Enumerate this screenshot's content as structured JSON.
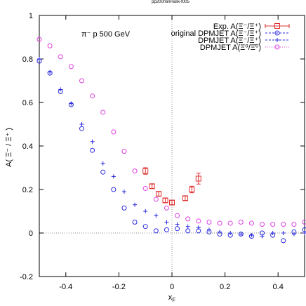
{
  "chart_data": {
    "type": "scatter",
    "title": "pp200minHask-t005",
    "xlabel": "x_F",
    "ylabel": "A( Ξ⁻ / Ξ⁺ )",
    "xlim": [
      -0.5,
      0.5
    ],
    "ylim": [
      -0.2,
      1.0
    ],
    "x_ticks": [
      -0.4,
      -0.2,
      0,
      0.2,
      0.4
    ],
    "y_ticks": [
      -0.2,
      0,
      0.2,
      0.4,
      0.6,
      0.8,
      1
    ],
    "x_tick_labels": [
      "-0.4",
      "-0.2",
      "0",
      "0.2",
      "0.4"
    ],
    "y_tick_labels": [
      "-0.2",
      "0",
      "0.2",
      "0.4",
      "0.6",
      "0.8",
      "1"
    ],
    "annotation": "π⁻ p   500 GeV",
    "grid": false,
    "zero_lines": true,
    "legend_position": "top-right",
    "series": [
      {
        "name": "Exp.  A(Ξ⁻/Ξ⁺)",
        "marker": "square",
        "color": "#e03030",
        "points": [
          {
            "x": -0.1,
            "y": 0.285,
            "err": 0.015
          },
          {
            "x": -0.075,
            "y": 0.215,
            "err": 0.01
          },
          {
            "x": -0.05,
            "y": 0.18,
            "err": 0.01
          },
          {
            "x": -0.025,
            "y": 0.15,
            "err": 0.01
          },
          {
            "x": 0.0,
            "y": 0.14,
            "err": 0.01
          },
          {
            "x": 0.05,
            "y": 0.16,
            "err": 0.01
          },
          {
            "x": 0.075,
            "y": 0.2,
            "err": 0.015
          },
          {
            "x": 0.1,
            "y": 0.25,
            "err": 0.025
          }
        ]
      },
      {
        "name": "original DPMJET A(Ξ⁻/Ξ⁺)",
        "marker": "circle",
        "color": "#2a2ae0",
        "points": [
          {
            "x": -0.5,
            "y": 0.79
          },
          {
            "x": -0.46,
            "y": 0.735
          },
          {
            "x": -0.42,
            "y": 0.65
          },
          {
            "x": -0.38,
            "y": 0.59
          },
          {
            "x": -0.34,
            "y": 0.48
          },
          {
            "x": -0.3,
            "y": 0.38
          },
          {
            "x": -0.26,
            "y": 0.28
          },
          {
            "x": -0.22,
            "y": 0.2
          },
          {
            "x": -0.18,
            "y": 0.115
          },
          {
            "x": -0.14,
            "y": 0.05
          },
          {
            "x": -0.1,
            "y": 0.03
          },
          {
            "x": -0.06,
            "y": 0.01
          },
          {
            "x": -0.02,
            "y": 0.015
          },
          {
            "x": 0.02,
            "y": 0.02
          },
          {
            "x": 0.06,
            "y": 0.01
          },
          {
            "x": 0.1,
            "y": 0.01
          },
          {
            "x": 0.14,
            "y": 0.005
          },
          {
            "x": 0.18,
            "y": -0.005
          },
          {
            "x": 0.22,
            "y": -0.01
          },
          {
            "x": 0.26,
            "y": -0.005
          },
          {
            "x": 0.3,
            "y": -0.015
          },
          {
            "x": 0.34,
            "y": 0.0
          },
          {
            "x": 0.38,
            "y": -0.01
          },
          {
            "x": 0.42,
            "y": -0.035
          },
          {
            "x": 0.46,
            "y": 0.005
          },
          {
            "x": 0.5,
            "y": 0.015
          }
        ]
      },
      {
        "name": "DPMJET  A(Ξ⁻/Ξ⁺)",
        "marker": "plus",
        "color": "#2a2ae0",
        "points": [
          {
            "x": -0.5,
            "y": 0.8
          },
          {
            "x": -0.46,
            "y": 0.74
          },
          {
            "x": -0.42,
            "y": 0.66
          },
          {
            "x": -0.38,
            "y": 0.595
          },
          {
            "x": -0.34,
            "y": 0.5
          },
          {
            "x": -0.3,
            "y": 0.42
          },
          {
            "x": -0.26,
            "y": 0.32
          },
          {
            "x": -0.22,
            "y": 0.26
          },
          {
            "x": -0.18,
            "y": 0.19
          },
          {
            "x": -0.14,
            "y": 0.13
          },
          {
            "x": -0.1,
            "y": 0.1
          },
          {
            "x": -0.06,
            "y": 0.08
          },
          {
            "x": -0.02,
            "y": 0.05
          },
          {
            "x": 0.02,
            "y": 0.04
          },
          {
            "x": 0.06,
            "y": 0.03
          },
          {
            "x": 0.1,
            "y": 0.025
          },
          {
            "x": 0.14,
            "y": 0.015
          },
          {
            "x": 0.18,
            "y": 0.005
          },
          {
            "x": 0.22,
            "y": 0.0
          },
          {
            "x": 0.26,
            "y": -0.005
          },
          {
            "x": 0.3,
            "y": -0.01
          },
          {
            "x": 0.34,
            "y": -0.015
          },
          {
            "x": 0.38,
            "y": 0.0
          },
          {
            "x": 0.42,
            "y": 0.0
          },
          {
            "x": 0.46,
            "y": -0.005
          },
          {
            "x": 0.5,
            "y": 0.0
          }
        ]
      },
      {
        "name": "DPMJET  A(Ξ⁰/Ξ̄⁰)",
        "marker": "circle",
        "color": "#e040e0",
        "points": [
          {
            "x": -0.5,
            "y": 0.89
          },
          {
            "x": -0.46,
            "y": 0.86
          },
          {
            "x": -0.42,
            "y": 0.81
          },
          {
            "x": -0.38,
            "y": 0.765
          },
          {
            "x": -0.34,
            "y": 0.7
          },
          {
            "x": -0.3,
            "y": 0.63
          },
          {
            "x": -0.26,
            "y": 0.555
          },
          {
            "x": -0.22,
            "y": 0.465
          },
          {
            "x": -0.18,
            "y": 0.375
          },
          {
            "x": -0.14,
            "y": 0.285
          },
          {
            "x": -0.1,
            "y": 0.205
          },
          {
            "x": -0.06,
            "y": 0.155
          },
          {
            "x": -0.02,
            "y": 0.115
          },
          {
            "x": 0.02,
            "y": 0.08
          },
          {
            "x": 0.06,
            "y": 0.065
          },
          {
            "x": 0.1,
            "y": 0.055
          },
          {
            "x": 0.14,
            "y": 0.05
          },
          {
            "x": 0.18,
            "y": 0.045
          },
          {
            "x": 0.22,
            "y": 0.045
          },
          {
            "x": 0.26,
            "y": 0.05
          },
          {
            "x": 0.3,
            "y": 0.045
          },
          {
            "x": 0.34,
            "y": 0.04
          },
          {
            "x": 0.38,
            "y": 0.04
          },
          {
            "x": 0.42,
            "y": 0.04
          },
          {
            "x": 0.46,
            "y": 0.04
          },
          {
            "x": 0.5,
            "y": 0.05
          }
        ]
      }
    ]
  }
}
